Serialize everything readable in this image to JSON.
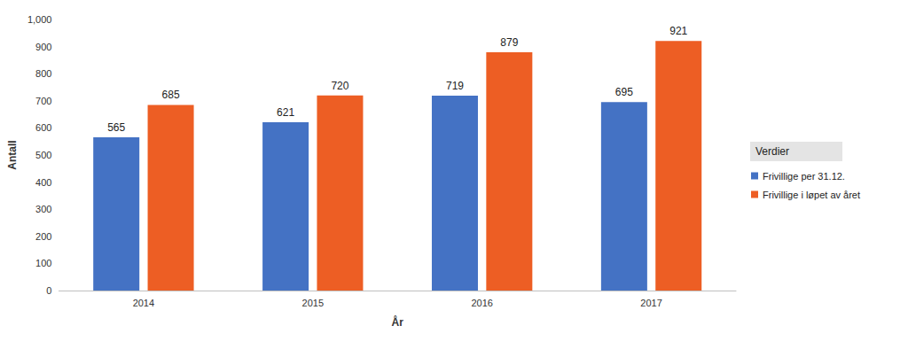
{
  "chart_data": {
    "type": "bar",
    "x_label": "År",
    "y_label": "Antall",
    "legend_title": "Verdier",
    "categories": [
      "2014",
      "2015",
      "2016",
      "2017"
    ],
    "series": [
      {
        "name": "Frivillige per 31.12.",
        "color": "#4472c4",
        "values": [
          565,
          621,
          719,
          695
        ]
      },
      {
        "name": "Frivillige i løpet av året",
        "color": "#ed5e24",
        "values": [
          685,
          720,
          879,
          921
        ]
      }
    ],
    "ylim": [
      0,
      1000
    ],
    "yticks": [
      0,
      100,
      200,
      300,
      400,
      500,
      600,
      700,
      800,
      900,
      1000
    ],
    "grid": false,
    "legend": "right",
    "data_labels": true
  }
}
